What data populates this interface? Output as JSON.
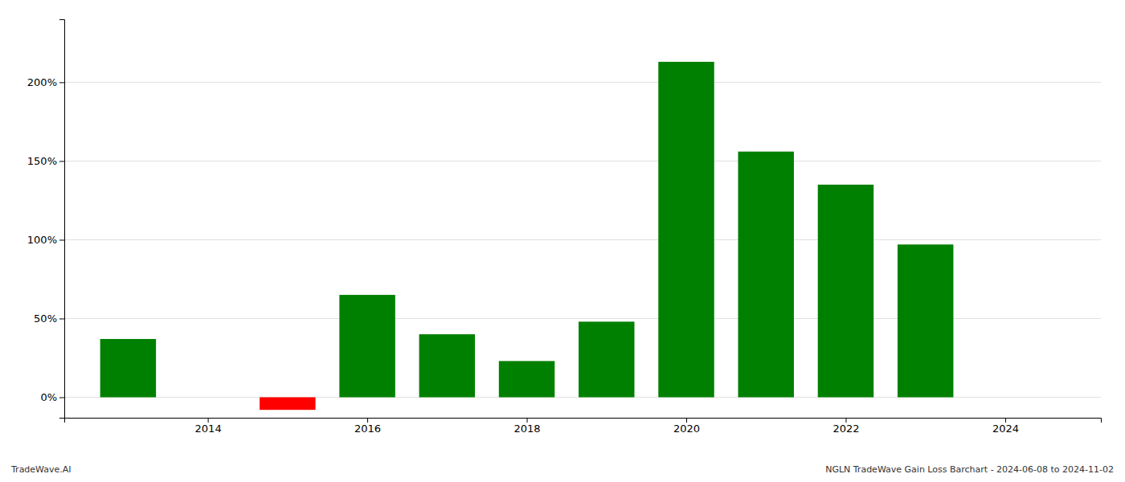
{
  "chart_data": {
    "type": "bar",
    "x": [
      2013,
      2015,
      2016,
      2017,
      2018,
      2019,
      2020,
      2021,
      2022,
      2023
    ],
    "values": [
      0.37,
      -0.08,
      0.65,
      0.4,
      0.23,
      0.48,
      2.13,
      1.56,
      1.35,
      0.97
    ],
    "colors": [
      "#008000",
      "#ff0000",
      "#008000",
      "#008000",
      "#008000",
      "#008000",
      "#008000",
      "#008000",
      "#008000",
      "#008000"
    ],
    "xlim": [
      2012.2,
      2025.2
    ],
    "ylim": [
      -0.13,
      2.4
    ],
    "xticks": [
      2014,
      2016,
      2018,
      2020,
      2022,
      2024
    ],
    "yticks": [
      {
        "value": 0.0,
        "label": "0%"
      },
      {
        "value": 0.5,
        "label": "50%"
      },
      {
        "value": 1.0,
        "label": "100%"
      },
      {
        "value": 1.5,
        "label": "150%"
      },
      {
        "value": 2.0,
        "label": "200%"
      }
    ],
    "grid": true,
    "annotations": [
      "TradeWave.AI",
      "NGLN TradeWave Gain Loss Barchart - 2024-06-08 to 2024-11-02"
    ]
  }
}
